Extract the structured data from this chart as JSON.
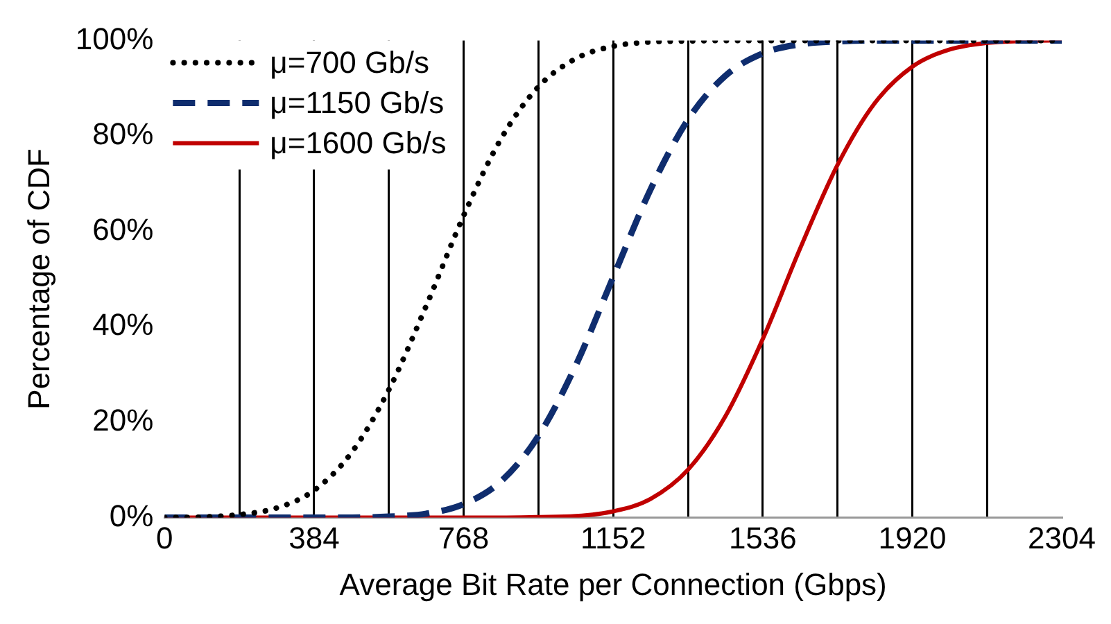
{
  "chart_data": {
    "type": "line",
    "xlabel": "Average Bit Rate per Connection (Gbps)",
    "ylabel": "Percentage of CDF",
    "x": [
      0,
      96,
      192,
      288,
      384,
      480,
      576,
      672,
      768,
      864,
      960,
      1056,
      1152,
      1248,
      1344,
      1440,
      1536,
      1632,
      1728,
      1824,
      1920,
      2016,
      2112,
      2208,
      2304
    ],
    "series": [
      {
        "name": "μ=700 Gb/s",
        "color": "#000000",
        "line_style": "dotted",
        "values": [
          0,
          0.1,
          0.6,
          2,
          5.7,
          13.6,
          26.8,
          44.4,
          63.3,
          79.4,
          90.3,
          96.2,
          98.8,
          99.7,
          99.9,
          100,
          100,
          100,
          100,
          100,
          100,
          100,
          100,
          100,
          100
        ]
      },
      {
        "name": "μ=1150 Gb/s",
        "color": "#0f2d6e",
        "line_style": "dashed",
        "values": [
          0,
          0,
          0,
          0,
          0,
          0,
          0.2,
          0.8,
          2.8,
          7.6,
          17.1,
          31.9,
          50.4,
          68.8,
          83.4,
          92.6,
          97.3,
          99.2,
          99.8,
          100,
          100,
          100,
          100,
          100,
          100
        ]
      },
      {
        "name": "μ=1600 Gb/s",
        "color": "#c00000",
        "line_style": "solid",
        "values": [
          0,
          0,
          0,
          0,
          0,
          0,
          0,
          0,
          0,
          0,
          0.1,
          0.3,
          1.3,
          3.9,
          10,
          21.2,
          37.4,
          56.4,
          73.9,
          86.9,
          94.5,
          98.1,
          99.5,
          99.9,
          100
        ]
      }
    ],
    "xlim": [
      0,
      2304
    ],
    "xticks": [
      0,
      {
        "value": 192,
        "label": null
      },
      384,
      {
        "value": 576,
        "label": null
      },
      768,
      {
        "value": 960,
        "label": null
      },
      1152,
      {
        "value": 1344,
        "label": null
      },
      1536,
      {
        "value": 1728,
        "label": null
      },
      1920,
      {
        "value": 2112,
        "label": null
      },
      2304
    ],
    "ylim": [
      0,
      100
    ],
    "yticks": [
      {
        "value": 0,
        "label": "0%"
      },
      {
        "value": 20,
        "label": "20%"
      },
      {
        "value": 40,
        "label": "40%"
      },
      {
        "value": 60,
        "label": "60%"
      },
      {
        "value": 80,
        "label": "80%"
      },
      {
        "value": 100,
        "label": "100%"
      }
    ],
    "grid": "x",
    "legend": "top left",
    "marker": "none"
  }
}
